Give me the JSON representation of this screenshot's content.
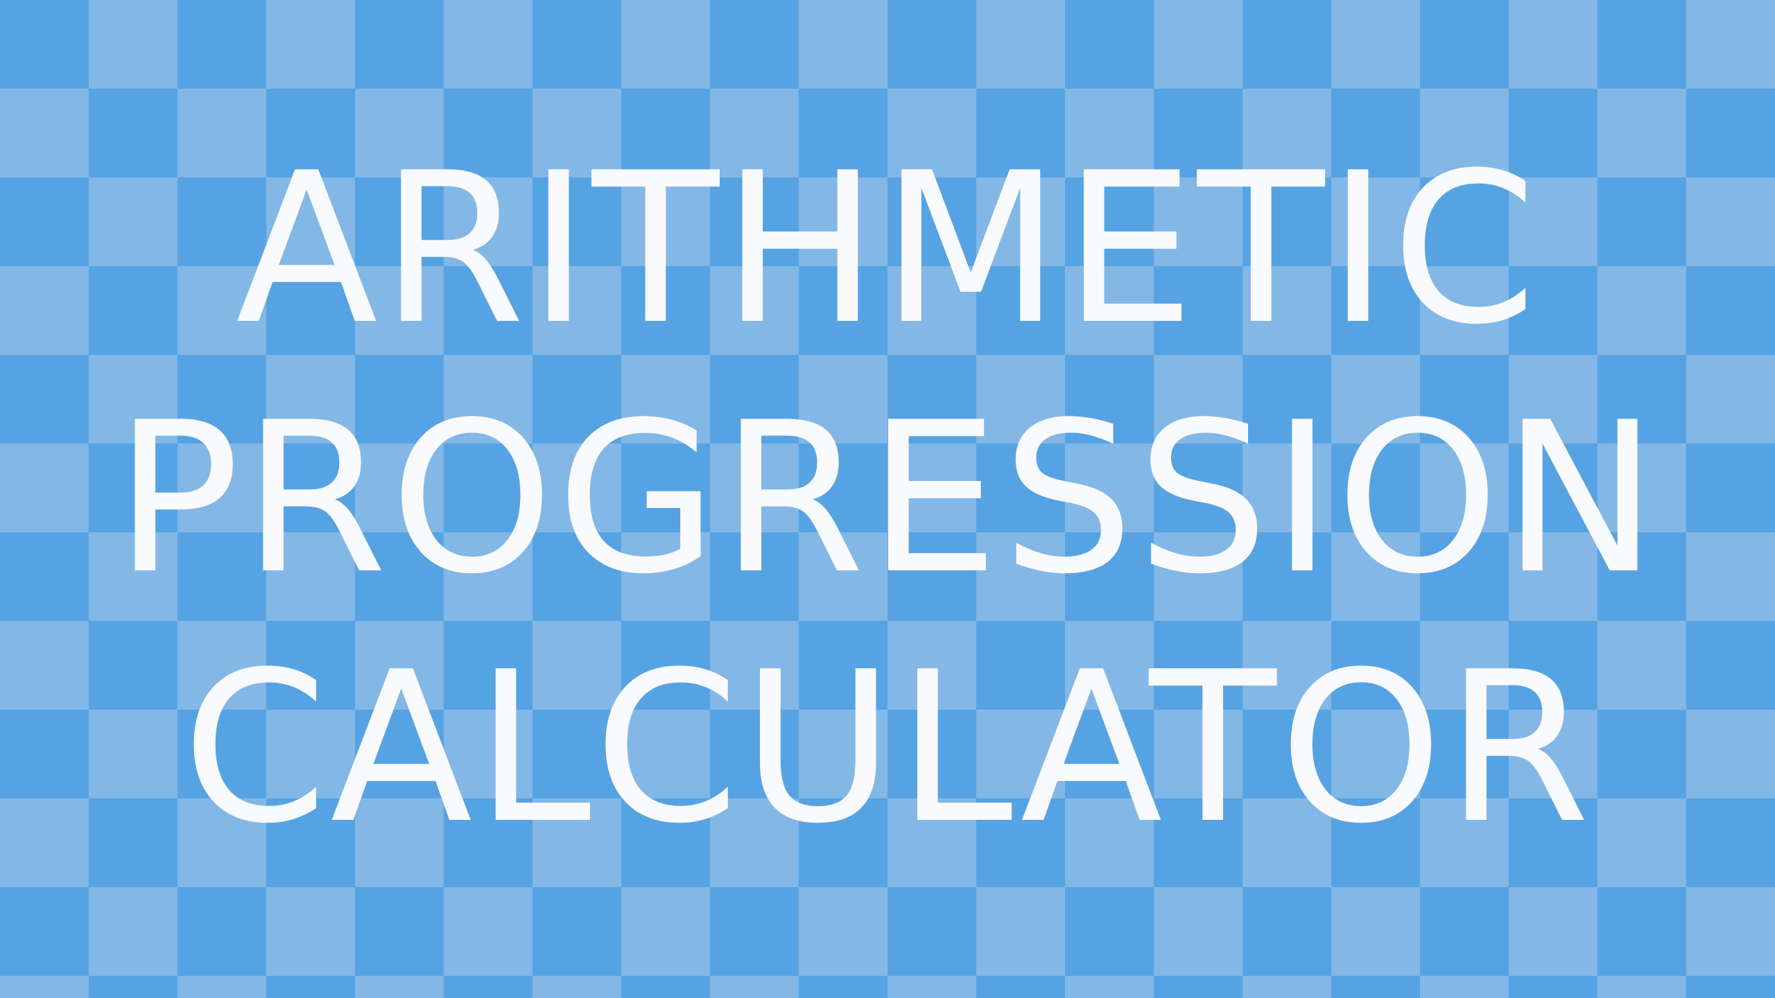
{
  "background": {
    "pattern": "checkerboard",
    "colors": [
      "#56A3E3",
      "#83B7E6"
    ]
  },
  "title": {
    "lines": [
      "ARITHMETIC",
      "PROGRESSION",
      "CALCULATOR"
    ],
    "color": "#F8FAFD"
  }
}
